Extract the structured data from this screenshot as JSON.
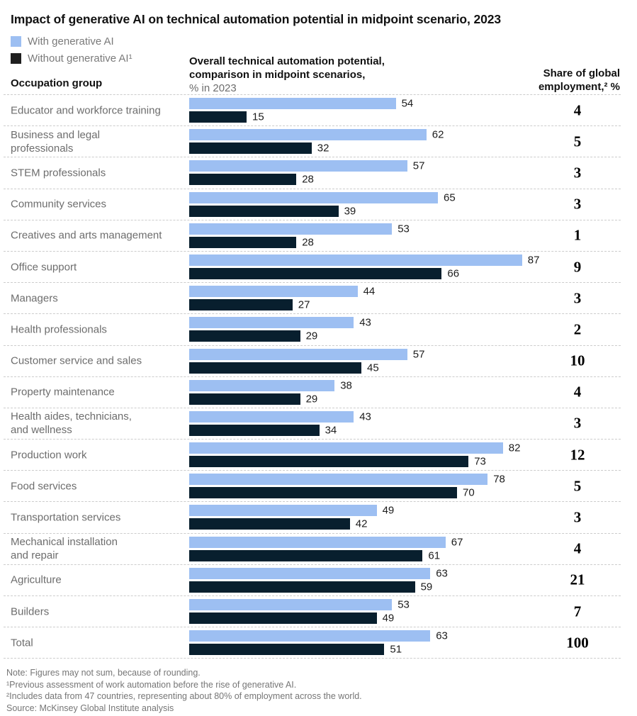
{
  "title": "Impact of generative AI on technical automation potential in midpoint scenario, 2023",
  "colors": {
    "bar-light": "#9dbff2",
    "bar-dark": "#081f2e",
    "legend-dark": "#1f1f1f"
  },
  "legend": {
    "with_label": "With generative AI",
    "without_label": "Without generative AI¹"
  },
  "header": {
    "occupation_col": "Occupation group",
    "potential_col": {
      "line1": "Overall technical automation potential,",
      "line2": "comparison in midpoint scenarios,",
      "line3": "% in 2023"
    },
    "share_col": {
      "line1": "Share of global",
      "line2": "employment,² %"
    }
  },
  "chart_data": {
    "type": "bar",
    "orientation": "horizontal",
    "unit": "%",
    "value_range": [
      0,
      100
    ],
    "series_names": [
      "With generative AI",
      "Without generative AI¹"
    ],
    "rows": [
      {
        "label": "Educator and workforce training",
        "with_genai": 54,
        "without_genai": 15,
        "share": 4
      },
      {
        "label": "Business and legal\nprofessionals",
        "with_genai": 62,
        "without_genai": 32,
        "share": 5
      },
      {
        "label": "STEM professionals",
        "with_genai": 57,
        "without_genai": 28,
        "share": 3
      },
      {
        "label": "Community services",
        "with_genai": 65,
        "without_genai": 39,
        "share": 3
      },
      {
        "label": "Creatives and arts management",
        "with_genai": 53,
        "without_genai": 28,
        "share": 1
      },
      {
        "label": "Office support",
        "with_genai": 87,
        "without_genai": 66,
        "share": 9
      },
      {
        "label": "Managers",
        "with_genai": 44,
        "without_genai": 27,
        "share": 3
      },
      {
        "label": "Health professionals",
        "with_genai": 43,
        "without_genai": 29,
        "share": 2
      },
      {
        "label": "Customer service and sales",
        "with_genai": 57,
        "without_genai": 45,
        "share": 10
      },
      {
        "label": "Property maintenance",
        "with_genai": 38,
        "without_genai": 29,
        "share": 4
      },
      {
        "label": "Health aides, technicians,\nand wellness",
        "with_genai": 43,
        "without_genai": 34,
        "share": 3
      },
      {
        "label": "Production work",
        "with_genai": 82,
        "without_genai": 73,
        "share": 12
      },
      {
        "label": "Food services",
        "with_genai": 78,
        "without_genai": 70,
        "share": 5
      },
      {
        "label": "Transportation services",
        "with_genai": 49,
        "without_genai": 42,
        "share": 3
      },
      {
        "label": "Mechanical installation\nand repair",
        "with_genai": 67,
        "without_genai": 61,
        "share": 4
      },
      {
        "label": "Agriculture",
        "with_genai": 63,
        "without_genai": 59,
        "share": 21
      },
      {
        "label": "Builders",
        "with_genai": 53,
        "without_genai": 49,
        "share": 7
      },
      {
        "label": "Total",
        "with_genai": 63,
        "without_genai": 51,
        "share": 100
      }
    ]
  },
  "footnotes": [
    "Note: Figures may not sum, because of rounding.",
    "¹Previous assessment of work automation before the rise of generative AI.",
    "²Includes data from 47 countries, representing about 80% of employment across the world.",
    "Source: McKinsey Global Institute analysis"
  ]
}
